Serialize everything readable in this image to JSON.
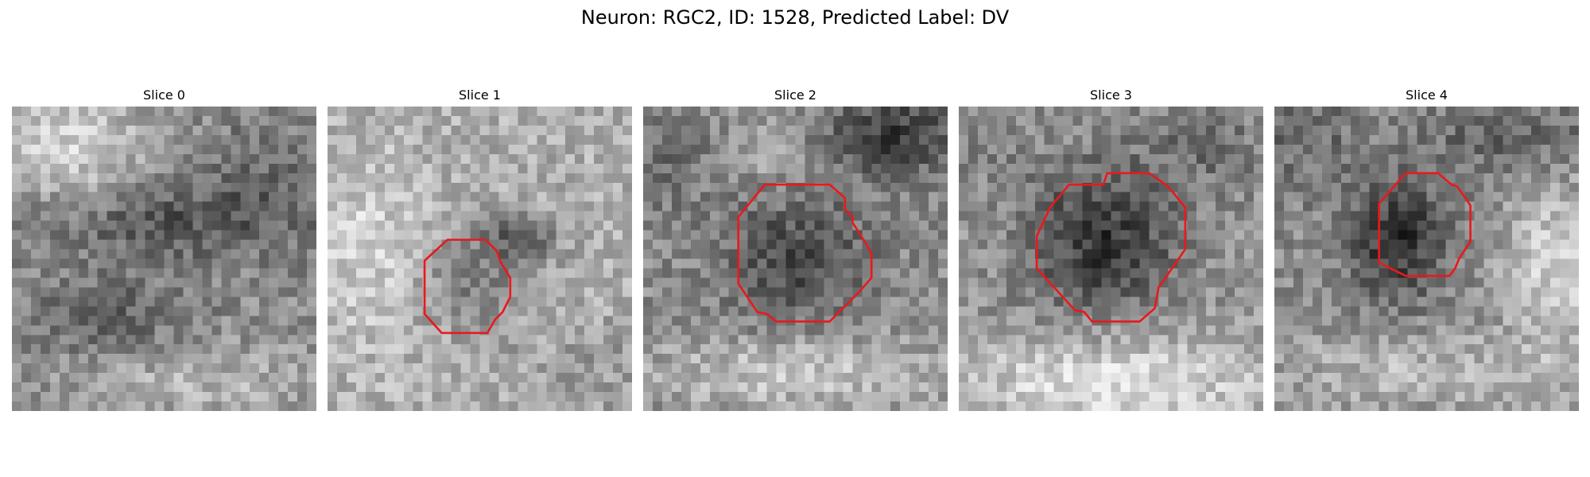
{
  "figure": {
    "title": "Neuron: RGC2, ID: 1528, Predicted Label: DV"
  },
  "colors": {
    "contour": "#e8191d",
    "background": "#ffffff"
  },
  "slices": [
    {
      "title": "Slice 0",
      "has_contour": false
    },
    {
      "title": "Slice 1",
      "has_contour": true
    },
    {
      "title": "Slice 2",
      "has_contour": true
    },
    {
      "title": "Slice 3",
      "has_contour": true
    },
    {
      "title": "Slice 4",
      "has_contour": true
    }
  ]
}
